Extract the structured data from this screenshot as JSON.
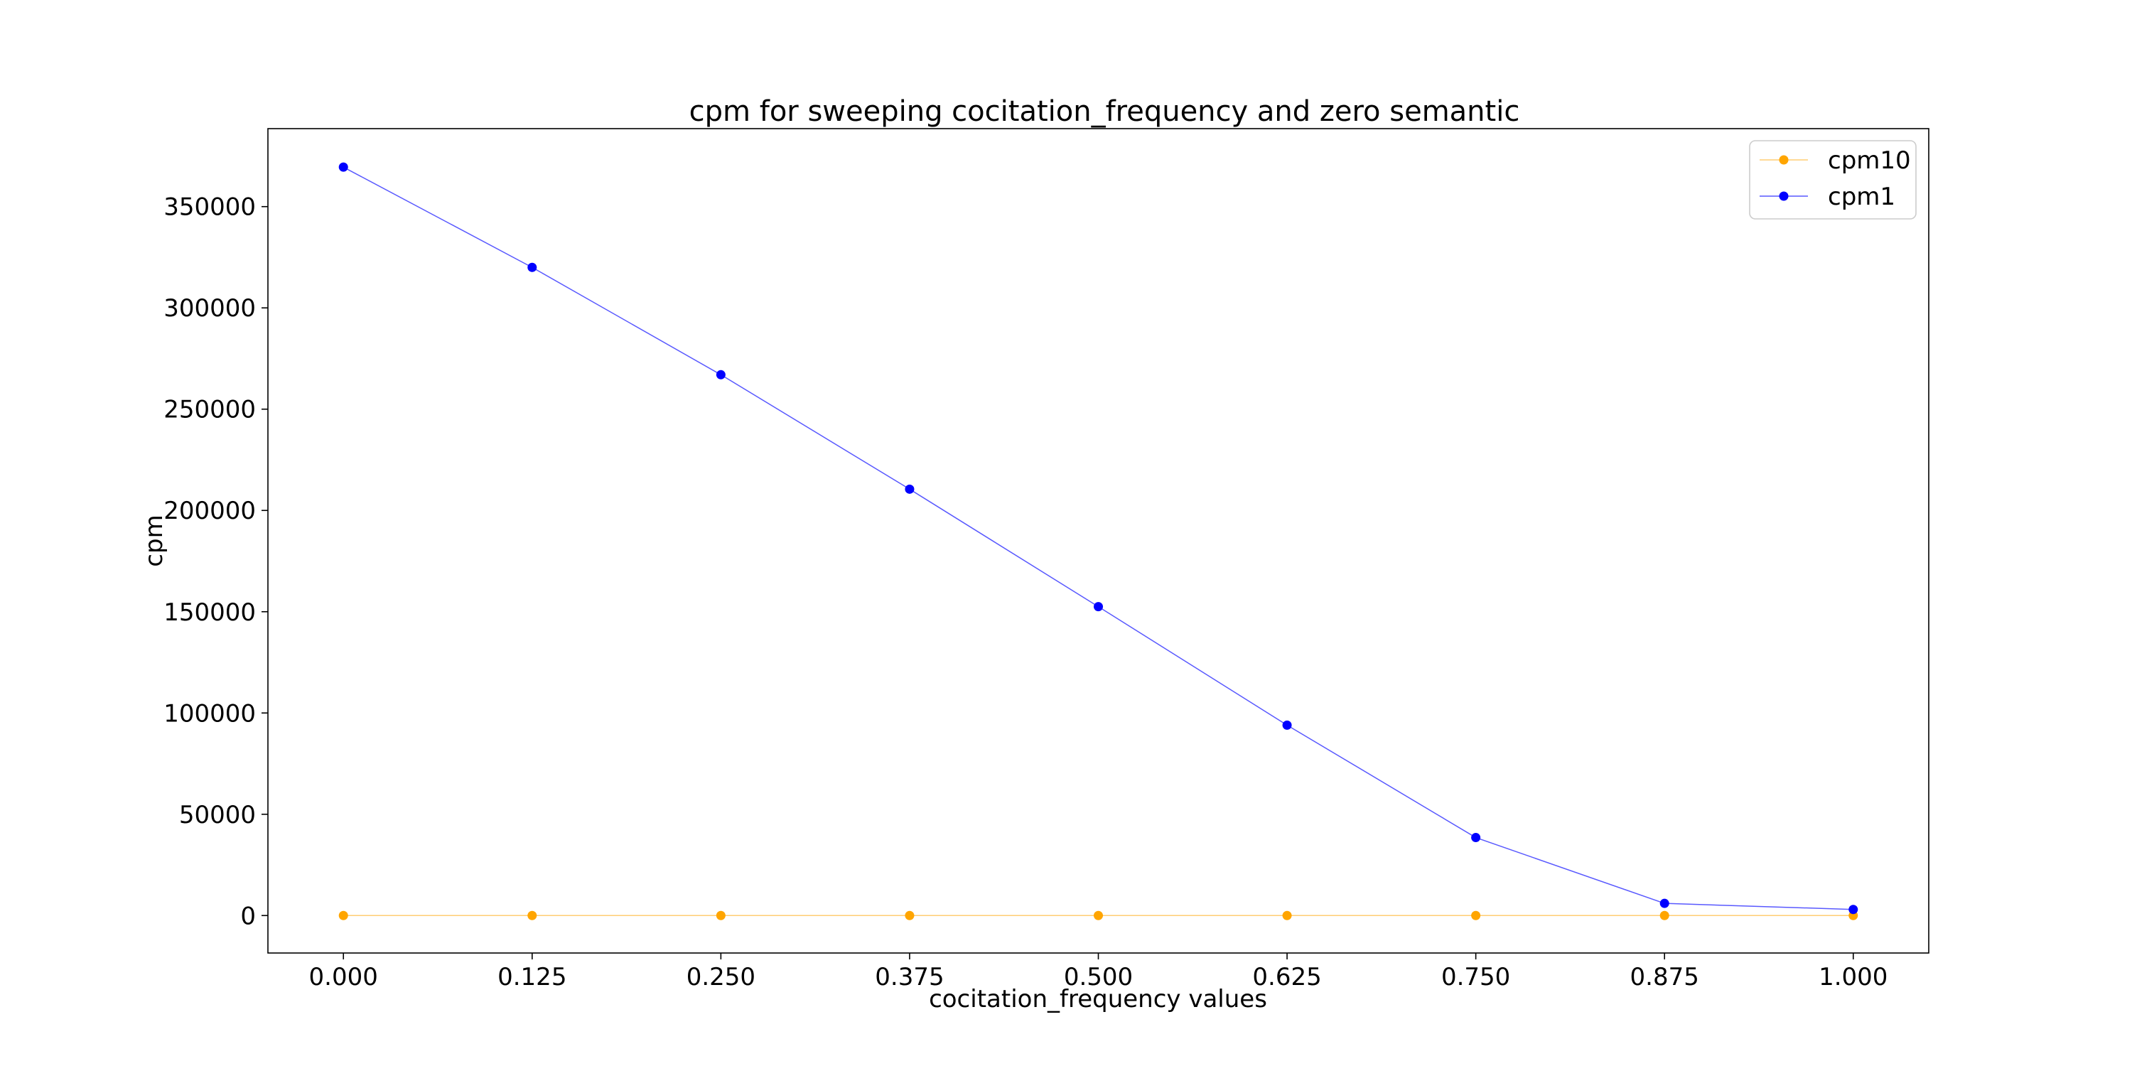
{
  "chart_data": {
    "type": "line",
    "title": "cpm for sweeping cocitation_frequency and zero semantic",
    "xlabel": "cocitation_frequency values",
    "ylabel": "cpm",
    "x": [
      0.0,
      0.125,
      0.25,
      0.375,
      0.5,
      0.625,
      0.75,
      0.875,
      1.0
    ],
    "x_tick_labels": [
      "0.000",
      "0.125",
      "0.250",
      "0.375",
      "0.500",
      "0.625",
      "0.750",
      "0.875",
      "1.000"
    ],
    "y_ticks": [
      0,
      50000,
      100000,
      150000,
      200000,
      250000,
      300000,
      350000
    ],
    "y_tick_labels": [
      "0",
      "50000",
      "100000",
      "150000",
      "200000",
      "250000",
      "300000",
      "350000"
    ],
    "xlim": [
      -0.05,
      1.05
    ],
    "ylim": [
      -18500,
      388500
    ],
    "grid": false,
    "legend_placement": "top-right",
    "series": [
      {
        "name": "cpm10",
        "color": "#ffa500",
        "values": [
          0,
          0,
          0,
          0,
          0,
          0,
          0,
          0,
          0
        ]
      },
      {
        "name": "cpm1",
        "color": "#0000ff",
        "values": [
          369500,
          320000,
          267000,
          210500,
          152500,
          94000,
          38500,
          6000,
          3000
        ]
      }
    ]
  }
}
